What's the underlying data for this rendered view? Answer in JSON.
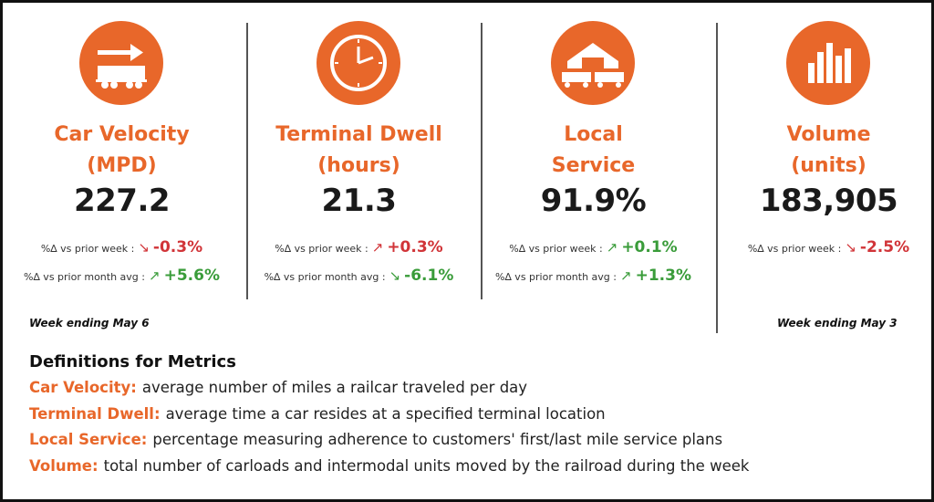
{
  "metrics": [
    {
      "title": [
        "Car Velocity",
        "(MPD)"
      ],
      "value": "227.2",
      "changes": [
        {
          "label": "%∆ vs prior week :",
          "arrow": "↘",
          "text": "-0.3%",
          "color": "#d13438"
        },
        {
          "label": "%∆ vs prior month avg :",
          "arrow": "↗",
          "text": "+5.6%",
          "color": "#3a9c3a"
        }
      ]
    },
    {
      "title": [
        "Terminal Dwell",
        "(hours)"
      ],
      "value": "21.3",
      "changes": [
        {
          "label": "%∆ vs prior week :",
          "arrow": "↗",
          "text": "+0.3%",
          "color": "#d13438"
        },
        {
          "label": "%∆ vs prior month avg :",
          "arrow": "↘",
          "text": "-6.1%",
          "color": "#3a9c3a"
        }
      ]
    },
    {
      "title": [
        "Local",
        "Service"
      ],
      "value": "91.9%",
      "changes": [
        {
          "label": "%∆ vs prior week :",
          "arrow": "↗",
          "text": "+0.1%",
          "color": "#3a9c3a"
        },
        {
          "label": "%∆ vs prior month avg :",
          "arrow": "↗",
          "text": "+1.3%",
          "color": "#3a9c3a"
        }
      ]
    },
    {
      "title": [
        "Volume",
        "(units)"
      ],
      "value": "183,905",
      "changes": [
        {
          "label": "%∆ vs prior week :",
          "arrow": "↘",
          "text": "-2.5%",
          "color": "#d13438"
        }
      ]
    }
  ],
  "footnotes": [
    "Week ending May 6",
    "Week ending May 3"
  ],
  "definitions": {
    "heading": "Definitions for Metrics",
    "items": [
      {
        "term": "Car Velocity:",
        "text": "average number of miles a railcar traveled per day"
      },
      {
        "term": "Terminal Dwell:",
        "text": "average time a car resides at a specified terminal location"
      },
      {
        "term": "Local Service:",
        "text": "percentage measuring adherence to customers' first/last mile service plans"
      },
      {
        "term": "Volume:",
        "text": "total number of carloads and intermodal units moved by the railroad during the week"
      }
    ]
  }
}
